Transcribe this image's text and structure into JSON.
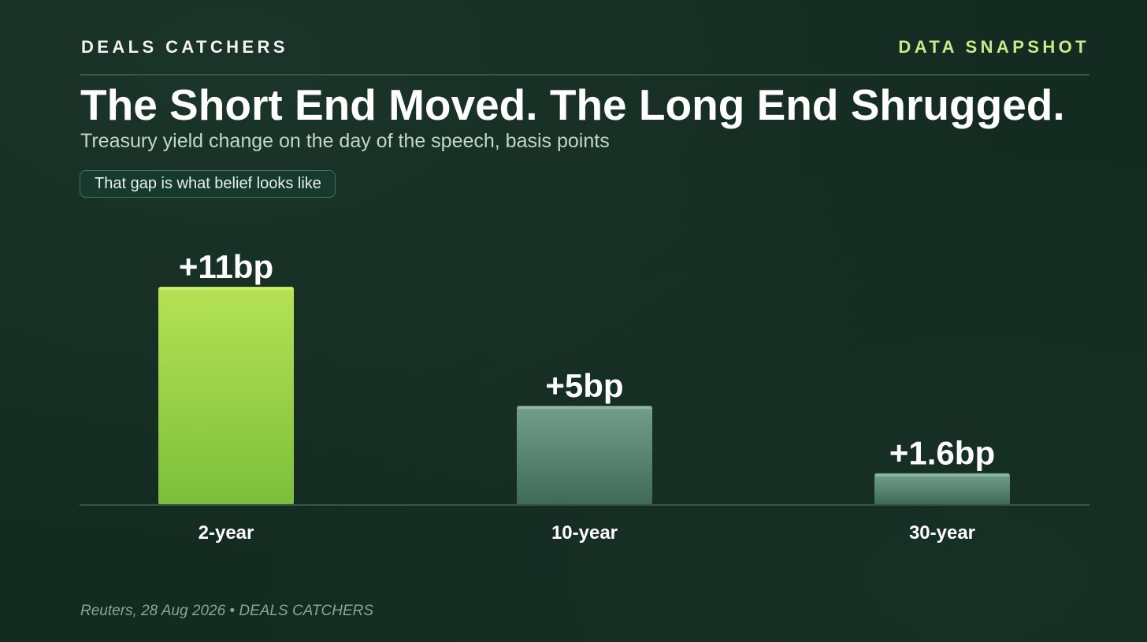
{
  "header": {
    "brand": "DEALS CATCHERS",
    "tag": "DATA SNAPSHOT"
  },
  "title": "The Short End Moved. The Long End Shrugged.",
  "subtitle": "Treasury yield change on the day of the speech, basis points",
  "callout": "That gap is what belief looks like",
  "source": "Reuters, 28 Aug 2026 • DEALS CATCHERS",
  "colors": {
    "background": "#142b22",
    "accent_green_top": "#b5e254",
    "accent_green_bottom": "#7cbf3b",
    "muted_top": "#729f8b",
    "muted_bottom": "#3f6a58",
    "tag": "#cfe98a"
  },
  "chart_data": {
    "type": "bar",
    "categories": [
      "2-year",
      "10-year",
      "30-year"
    ],
    "values": [
      11,
      5,
      1.6
    ],
    "value_labels": [
      "+11bp",
      "+5bp",
      "+1.6bp"
    ],
    "unit": "bp",
    "ylim": [
      0,
      11
    ],
    "grid": false,
    "highlight": "2-year"
  }
}
